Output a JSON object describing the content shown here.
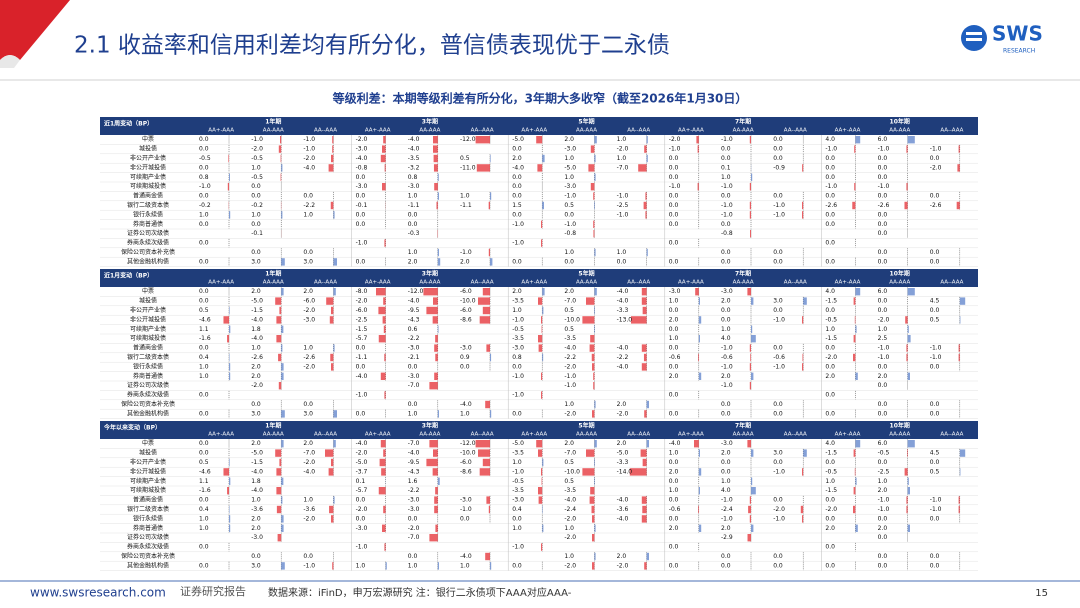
{
  "header": {
    "title": "2.1 收益率和信用利差均有所分化，普信债表现优于二永债",
    "logo": "SWS",
    "logo_sub": "RESEARCH"
  },
  "subtitle": "等级利差：本期等级利差有所分化，3年期大多收窄（截至2026年1月30日）",
  "terms": [
    "1年期",
    "3年期",
    "5年期",
    "7年期",
    "10年期"
  ],
  "grades": [
    "AA+-AAA",
    "AA-AAA",
    "AA--AAA"
  ],
  "row_labels": [
    "中票",
    "城投债",
    "非公开产业债",
    "非公开城投债",
    "可续期产业债",
    "可续期城投债",
    "普通商金债",
    "银行二级资本债",
    "银行永续债",
    "券商普通债",
    "证券公司次级债",
    "券商永续次级债",
    "保险公司资本补充债",
    "其他金融机构债"
  ],
  "tables": [
    {
      "label": "近1周变动（BP）",
      "rows": [
        [
          "0.0",
          "-1.0",
          "-1.0",
          "-2.0",
          "-4.0",
          "-12.0",
          "-5.0",
          "2.0",
          "1.0",
          "-2.0",
          "-1.0",
          "0.0",
          "4.0",
          "6.0",
          null
        ],
        [
          "0.0",
          "-2.0",
          "-1.0",
          "-3.0",
          "-4.0",
          null,
          "0.0",
          "-3.0",
          "-2.0",
          "-1.0",
          "0.0",
          "0.0",
          "-1.0",
          "-1.0",
          "-1.0"
        ],
        [
          "-0.5",
          "-0.5",
          "-2.0",
          "-4.0",
          "-3.5",
          "0.5",
          "2.0",
          "1.0",
          "1.0",
          "0.0",
          "0.0",
          "0.0",
          "0.0",
          "0.0",
          "0.0"
        ],
        [
          "0.0",
          "1.0",
          "-4.0",
          "-0.8",
          "-3.2",
          "-11.0",
          "-4.0",
          "-5.0",
          "-7.0",
          "0.0",
          "0.1",
          "-0.9",
          "0.0",
          "0.0",
          "-2.0"
        ],
        [
          "0.8",
          "-0.5",
          null,
          "0.0",
          "0.8",
          null,
          "0.0",
          "1.0",
          null,
          "0.0",
          "1.0",
          null,
          "0.0",
          "0.0",
          null
        ],
        [
          "-1.0",
          "0.0",
          null,
          "-3.0",
          "-3.0",
          null,
          "0.0",
          "-3.0",
          null,
          "-1.0",
          "-1.0",
          null,
          "-1.0",
          "-1.0",
          null
        ],
        [
          "0.0",
          "0.0",
          "0.0",
          "0.0",
          "1.0",
          "1.0",
          "0.0",
          "-1.0",
          "-1.0",
          "0.0",
          "0.0",
          "0.0",
          "0.0",
          "0.0",
          "0.0"
        ],
        [
          "-0.2",
          "-0.2",
          "-2.2",
          "-0.1",
          "-1.1",
          "-1.1",
          "1.5",
          "0.5",
          "-2.5",
          "0.0",
          "-1.0",
          "-1.0",
          "-2.6",
          "-2.6",
          "-2.6"
        ],
        [
          "1.0",
          "1.0",
          "1.0",
          "0.0",
          "0.0",
          null,
          "0.0",
          "0.0",
          "-1.0",
          "0.0",
          "-1.0",
          "-1.0",
          "0.0",
          "0.0",
          null
        ],
        [
          "0.0",
          "0.0",
          null,
          "0.0",
          "0.0",
          null,
          "-1.0",
          "-1.0",
          null,
          "0.0",
          "0.0",
          null,
          "0.0",
          "0.0",
          null
        ],
        [
          null,
          "-0.1",
          null,
          null,
          "-0.3",
          null,
          null,
          "-0.8",
          null,
          null,
          "-0.8",
          null,
          null,
          "0.0",
          null
        ],
        [
          "0.0",
          null,
          null,
          "-1.0",
          null,
          null,
          "-1.0",
          null,
          null,
          "0.0",
          null,
          null,
          "0.0",
          null,
          null
        ],
        [
          null,
          "0.0",
          "0.0",
          null,
          "1.0",
          "-1.0",
          null,
          "1.0",
          "1.0",
          null,
          "0.0",
          "0.0",
          null,
          "0.0",
          "0.0"
        ],
        [
          "0.0",
          "3.0",
          "3.0",
          "0.0",
          "2.0",
          "2.0",
          "0.0",
          "0.0",
          "0.0",
          "0.0",
          "0.0",
          "0.0",
          "0.0",
          "0.0",
          "0.0"
        ]
      ]
    },
    {
      "label": "近1月变动（BP）",
      "rows": [
        [
          "0.0",
          "2.0",
          "2.0",
          "-8.0",
          "-12.0",
          "-6.0",
          "2.0",
          "2.0",
          "-4.0",
          "-3.0",
          "-3.0",
          null,
          "4.0",
          "6.0",
          null
        ],
        [
          "0.0",
          "-5.0",
          "-6.0",
          "-2.0",
          "-4.0",
          "-10.0",
          "-3.5",
          "-7.0",
          "-4.0",
          "1.0",
          "2.0",
          "3.0",
          "-1.5",
          "0.0",
          "4.5"
        ],
        [
          "0.5",
          "-1.5",
          "-2.0",
          "-6.0",
          "-9.5",
          "-6.0",
          "1.0",
          "0.5",
          "-3.3",
          "0.0",
          "0.0",
          "0.0",
          "0.0",
          "0.0",
          "0.0"
        ],
        [
          "-4.6",
          "-4.0",
          "-3.0",
          "-2.5",
          "-4.3",
          "-8.6",
          "-1.0",
          "-10.0",
          "-13.0",
          "2.0",
          "0.0",
          "-1.0",
          "-0.5",
          "-2.0",
          "0.5"
        ],
        [
          "1.1",
          "1.8",
          null,
          "-1.5",
          "0.6",
          null,
          "-0.5",
          "0.5",
          null,
          "0.0",
          "1.0",
          null,
          "1.0",
          "1.0",
          null
        ],
        [
          "-1.6",
          "-4.0",
          null,
          "-5.7",
          "-2.2",
          null,
          "-3.5",
          "-3.5",
          null,
          "1.0",
          "4.0",
          null,
          "-1.5",
          "2.5",
          null
        ],
        [
          "0.0",
          "1.0",
          "1.0",
          "0.0",
          "-3.0",
          "-3.0",
          "-3.0",
          "-4.0",
          "-4.0",
          "0.0",
          "-1.0",
          "0.0",
          "0.0",
          "-1.0",
          "-1.0"
        ],
        [
          "0.4",
          "-2.6",
          "-2.6",
          "-1.1",
          "-2.1",
          "0.9",
          "0.8",
          "-2.2",
          "-2.2",
          "-0.6",
          "-0.6",
          "-0.6",
          "-2.0",
          "-1.0",
          "-1.0"
        ],
        [
          "1.0",
          "2.0",
          "-2.0",
          "0.0",
          "0.0",
          "0.0",
          "0.0",
          "-2.0",
          "-4.0",
          "0.0",
          "-1.0",
          "-1.0",
          "0.0",
          "0.0",
          "0.0"
        ],
        [
          "1.0",
          "2.0",
          null,
          "-4.0",
          "-3.0",
          null,
          "-1.0",
          "-1.0",
          null,
          "2.0",
          "2.0",
          null,
          "2.0",
          "2.0",
          null
        ],
        [
          null,
          "-2.0",
          null,
          null,
          "-7.0",
          null,
          null,
          "-1.0",
          null,
          null,
          "-1.0",
          null,
          null,
          "0.0",
          null
        ],
        [
          "0.0",
          null,
          null,
          "-1.0",
          null,
          null,
          "-1.0",
          null,
          null,
          "0.0",
          null,
          null,
          "0.0",
          null,
          null
        ],
        [
          null,
          "0.0",
          "0.0",
          null,
          "0.0",
          "-4.0",
          null,
          "1.0",
          "2.0",
          null,
          "0.0",
          "0.0",
          null,
          "0.0",
          "0.0"
        ],
        [
          "0.0",
          "3.0",
          "3.0",
          "0.0",
          "1.0",
          "1.0",
          "0.0",
          "-2.0",
          "-2.0",
          "0.0",
          "0.0",
          "0.0",
          "0.0",
          "0.0",
          "0.0"
        ]
      ]
    },
    {
      "label": "今年以来变动（BP）",
      "rows": [
        [
          "0.0",
          "2.0",
          "2.0",
          "-4.0",
          "-7.0",
          "-12.0",
          "-5.0",
          "2.0",
          "2.0",
          "-4.0",
          "-3.0",
          null,
          "4.0",
          "6.0",
          null
        ],
        [
          "0.0",
          "-5.0",
          "-7.0",
          "-2.0",
          "-4.0",
          "-10.0",
          "-3.5",
          "-7.0",
          "-5.0",
          "1.0",
          "2.0",
          "3.0",
          "-1.5",
          "-0.5",
          "4.5"
        ],
        [
          "0.5",
          "-1.5",
          "-2.0",
          "-5.0",
          "-9.5",
          "-6.0",
          "1.0",
          "0.5",
          "-3.3",
          "0.0",
          "0.0",
          "0.0",
          "0.0",
          "0.0",
          "0.0"
        ],
        [
          "-4.6",
          "-4.0",
          "-4.0",
          "-3.7",
          "-4.3",
          "-8.6",
          "-1.0",
          "-10.0",
          "-14.0",
          "2.0",
          "0.0",
          "-1.0",
          "-0.5",
          "-2.5",
          "0.5"
        ],
        [
          "1.1",
          "1.8",
          null,
          "0.1",
          "1.6",
          null,
          "-0.5",
          "0.5",
          null,
          "0.0",
          "1.0",
          null,
          "1.0",
          "1.0",
          null
        ],
        [
          "-1.6",
          "-4.0",
          null,
          "-5.7",
          "-2.2",
          null,
          "-3.5",
          "-3.5",
          null,
          "1.0",
          "4.0",
          null,
          "-1.5",
          "2.0",
          null
        ],
        [
          "0.0",
          "1.0",
          "1.0",
          "0.0",
          "-3.0",
          "-3.0",
          "-3.0",
          "-4.0",
          "-4.0",
          "0.0",
          "-1.0",
          "0.0",
          "0.0",
          "-1.0",
          "-1.0"
        ],
        [
          "0.4",
          "-3.6",
          "-3.6",
          "-2.0",
          "-3.0",
          "-1.0",
          "0.4",
          "-2.4",
          "-3.6",
          "-0.6",
          "-2.4",
          "-2.0",
          "-2.0",
          "-1.0",
          "-1.0"
        ],
        [
          "1.0",
          "2.0",
          "-2.0",
          "0.0",
          "0.0",
          "0.0",
          "0.0",
          "-2.0",
          "-4.0",
          "0.0",
          "-1.0",
          "-1.0",
          "0.0",
          "0.0",
          "0.0"
        ],
        [
          "1.0",
          "2.0",
          null,
          "-3.0",
          "-2.0",
          null,
          "1.0",
          "1.0",
          null,
          "2.0",
          "2.0",
          null,
          "2.0",
          "2.0",
          null
        ],
        [
          null,
          "-3.0",
          null,
          null,
          "-7.0",
          null,
          null,
          "-2.0",
          null,
          null,
          "-2.9",
          null,
          null,
          "0.0",
          null
        ],
        [
          "0.0",
          null,
          null,
          "-1.0",
          null,
          null,
          "-1.0",
          null,
          null,
          "0.0",
          null,
          null,
          "0.0",
          null,
          null
        ],
        [
          null,
          "0.0",
          "0.0",
          null,
          "0.0",
          "-4.0",
          null,
          "1.0",
          "2.0",
          null,
          "0.0",
          "0.0",
          null,
          "0.0",
          "0.0"
        ],
        [
          "0.0",
          "3.0",
          "-1.0",
          "1.0",
          "1.0",
          "1.0",
          "0.0",
          "-2.0",
          "-2.0",
          "0.0",
          "0.0",
          "0.0",
          "0.0",
          "0.0",
          "0.0"
        ]
      ]
    }
  ],
  "footer": {
    "site": "www.swsresearch.com",
    "report": "证券研究报告",
    "source": "数据来源：iFinD，申万宏源研究  注：银行二永债项下AAA对应AAA-",
    "page": "15"
  }
}
